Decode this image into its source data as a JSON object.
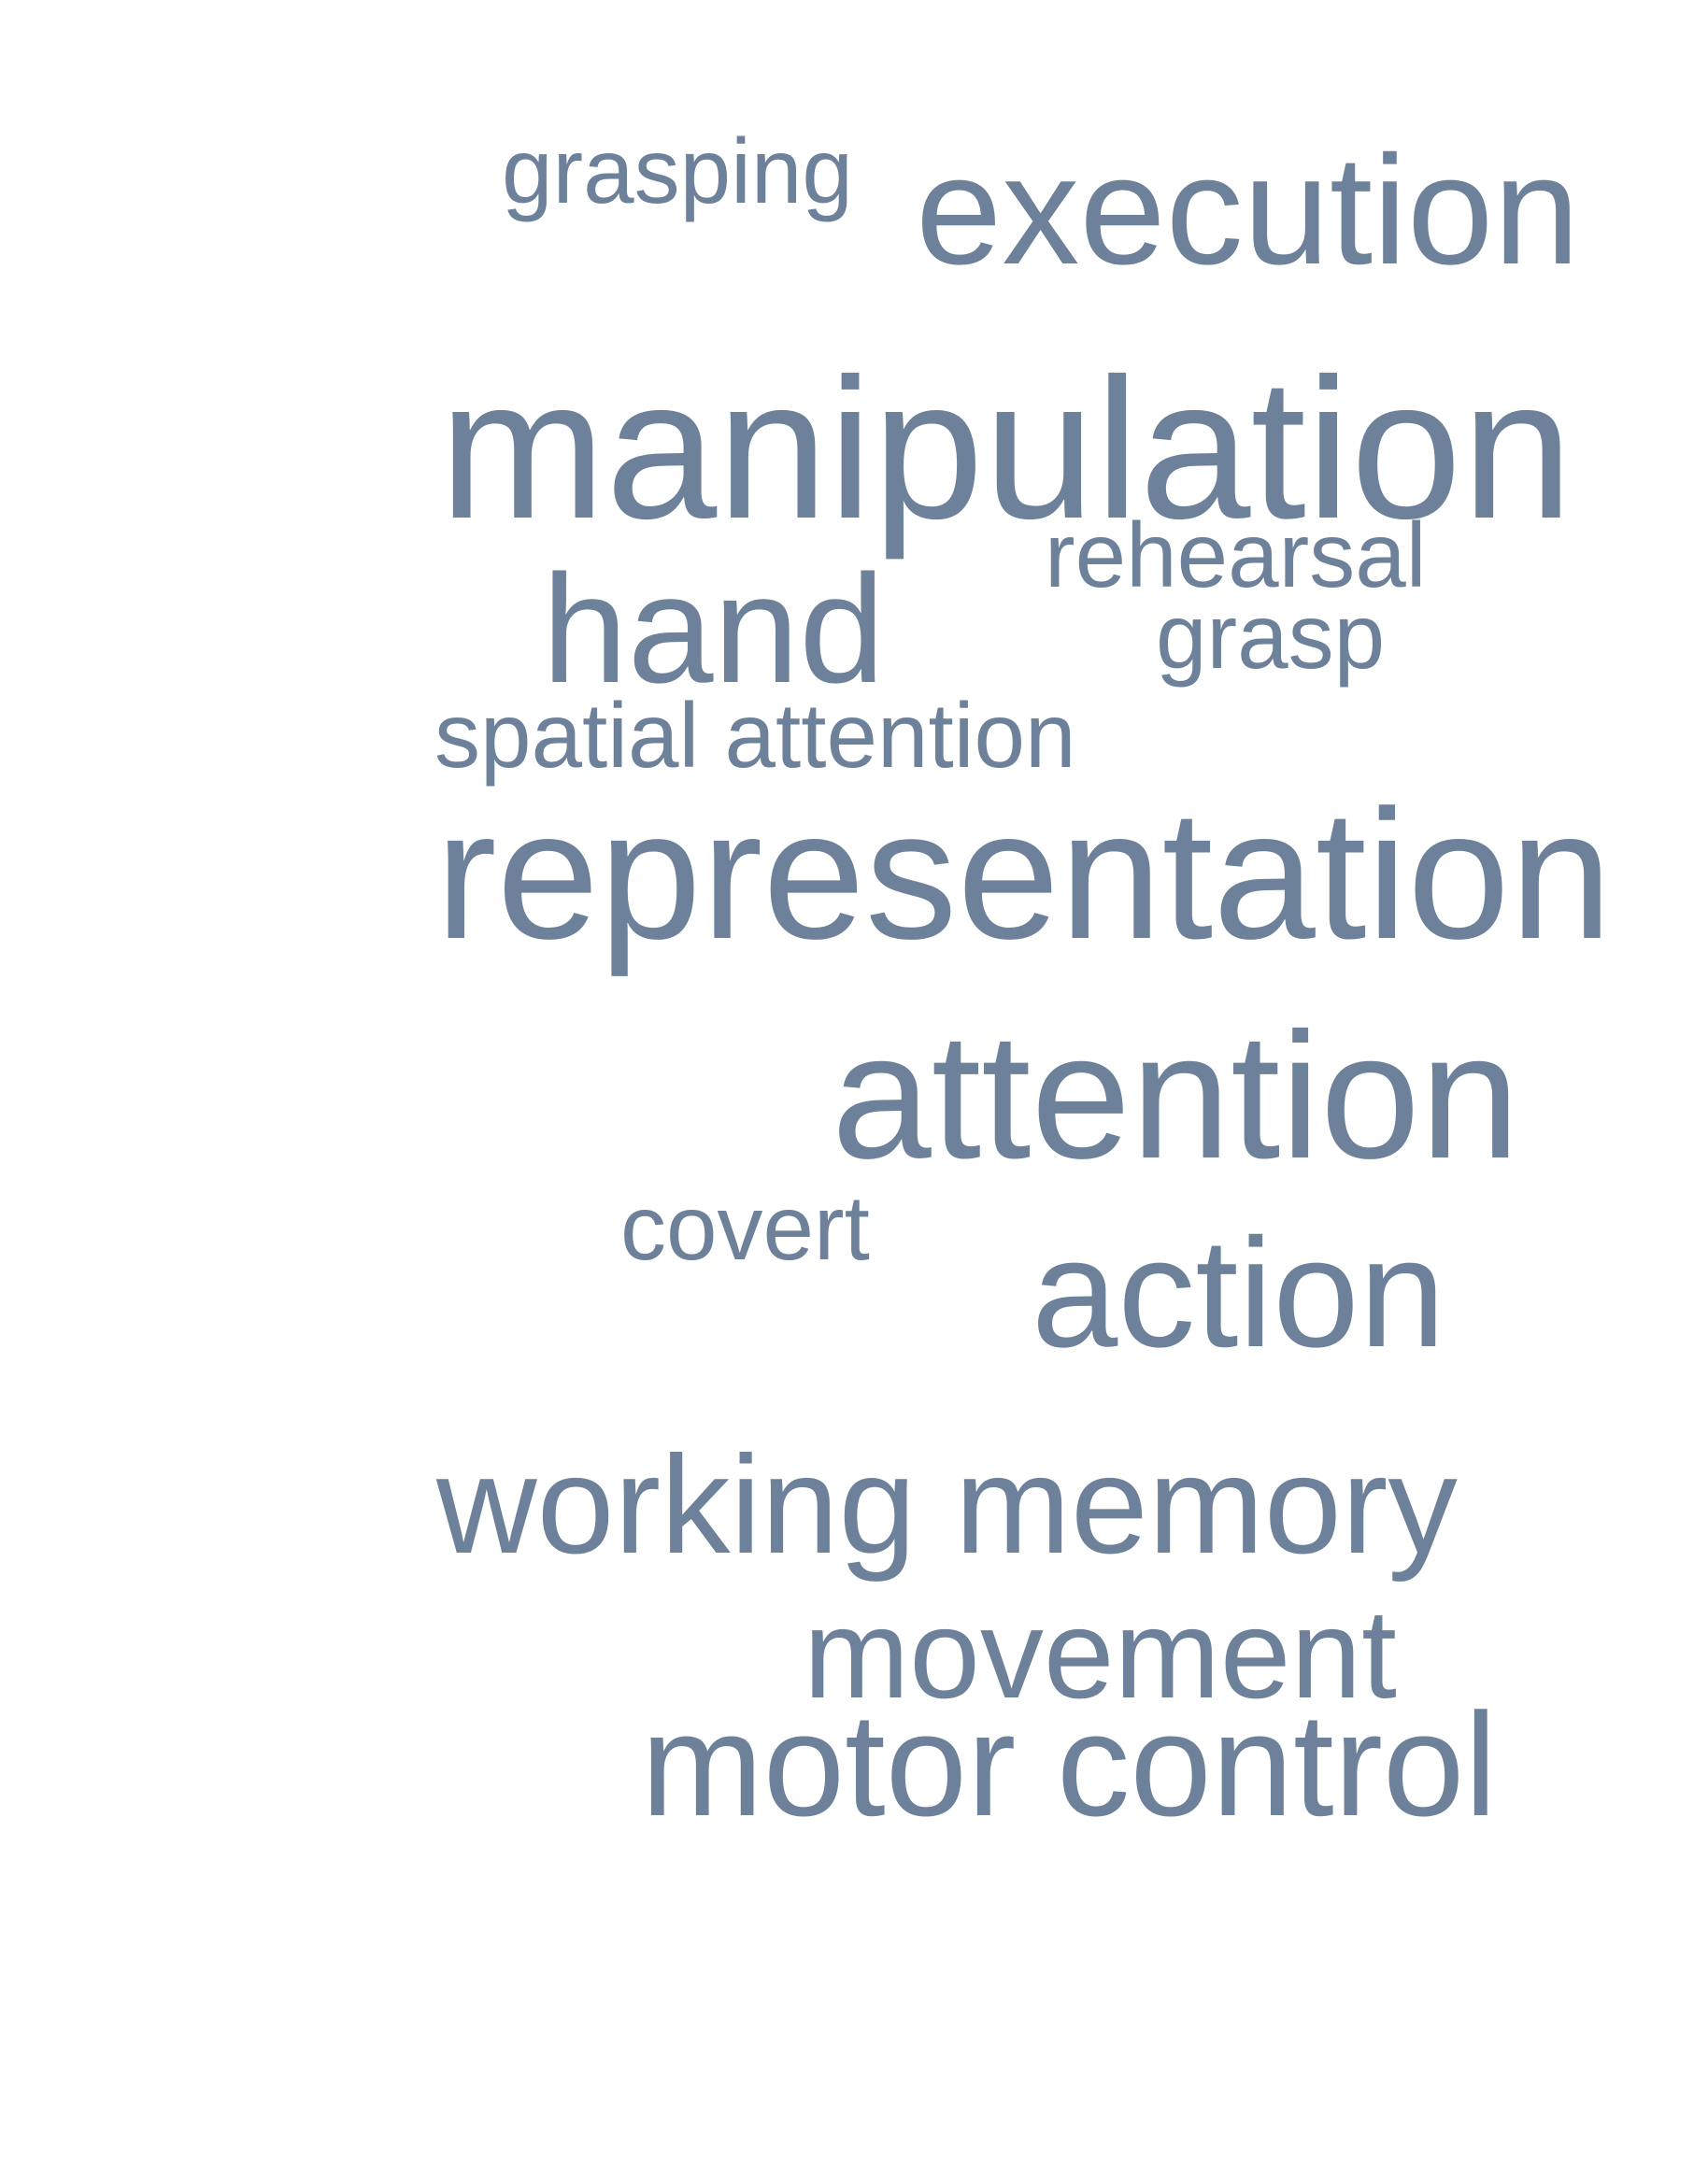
{
  "colors": {
    "background": "#ffffff",
    "word": "#6e819a"
  },
  "words": {
    "grasping": "grasping",
    "execution": "execution",
    "manipulation": "manipulation",
    "rehearsal": "rehearsal",
    "hand": "hand",
    "grasp": "grasp",
    "spatial_attention": "spatial attention",
    "representation": "representation",
    "attention": "attention",
    "covert": "covert",
    "action": "action",
    "working_memory": "working memory",
    "movement": "movement",
    "motor_control": "motor control"
  }
}
